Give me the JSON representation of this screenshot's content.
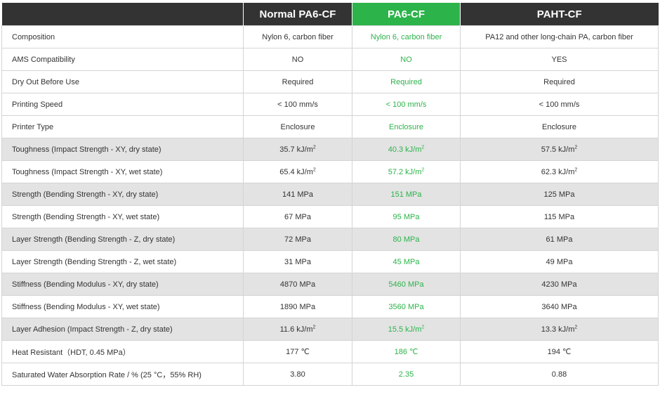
{
  "columns": [
    "",
    "Normal PA6-CF",
    "PA6-CF",
    "PAHT-CF"
  ],
  "colors": {
    "header_bg": "#333333",
    "highlight": "#2cb34a",
    "shaded_row": "#e3e3e3",
    "text": "#333333"
  },
  "rows": [
    {
      "label": "Composition",
      "shaded": false,
      "values": [
        "Nylon 6, carbon fiber",
        "Nylon 6, carbon fiber",
        "PA12 and other long-chain PA, carbon fiber"
      ]
    },
    {
      "label": "AMS Compatibility",
      "shaded": false,
      "values": [
        "NO",
        "NO",
        "YES"
      ]
    },
    {
      "label": "Dry Out Before Use",
      "shaded": false,
      "values": [
        "Required",
        "Required",
        "Required"
      ]
    },
    {
      "label": "Printing Speed",
      "shaded": false,
      "values": [
        "< 100 mm/s",
        "< 100 mm/s",
        "< 100 mm/s"
      ]
    },
    {
      "label": "Printer Type",
      "shaded": false,
      "values": [
        "Enclosure",
        "Enclosure",
        "Enclosure"
      ]
    },
    {
      "label": "Toughness (Impact Strength - XY, dry state)",
      "shaded": true,
      "values": [
        "35.7 kJ/m²",
        "40.3 kJ/m²",
        "57.5 kJ/m²"
      ]
    },
    {
      "label": "Toughness (Impact Strength - XY, wet state)",
      "shaded": false,
      "values": [
        "65.4 kJ/m²",
        "57.2 kJ/m²",
        "62.3 kJ/m²"
      ]
    },
    {
      "label": "Strength (Bending Strength - XY, dry state)",
      "shaded": true,
      "values": [
        "141 MPa",
        "151 MPa",
        "125 MPa"
      ]
    },
    {
      "label": "Strength (Bending Strength - XY, wet state)",
      "shaded": false,
      "values": [
        "67 MPa",
        "95 MPa",
        "115 MPa"
      ]
    },
    {
      "label": "Layer Strength (Bending Strength - Z, dry state)",
      "shaded": true,
      "values": [
        "72 MPa",
        "80 MPa",
        "61 MPa"
      ]
    },
    {
      "label": "Layer Strength (Bending Strength - Z, wet state)",
      "shaded": false,
      "values": [
        "31 MPa",
        "45 MPa",
        "49 MPa"
      ]
    },
    {
      "label": "Stiffness (Bending Modulus - XY, dry state)",
      "shaded": true,
      "values": [
        "4870 MPa",
        "5460 MPa",
        "4230 MPa"
      ]
    },
    {
      "label": "Stiffness (Bending Modulus - XY, wet state)",
      "shaded": false,
      "values": [
        "1890 MPa",
        "3560 MPa",
        "3640 MPa"
      ]
    },
    {
      "label": "Layer Adhesion (Impact Strength - Z, dry state)",
      "shaded": true,
      "values": [
        "11.6 kJ/m²",
        "15.5 kJ/m²",
        "13.3 kJ/m²"
      ]
    },
    {
      "label": "Heat Resistant（HDT, 0.45 MPa）",
      "shaded": false,
      "values": [
        "177 ℃",
        "186 ℃",
        "194 ℃"
      ]
    },
    {
      "label": "Saturated Water Absorption Rate / % (25 °C，55% RH)",
      "shaded": false,
      "values": [
        "3.80",
        "2.35",
        "0.88"
      ]
    }
  ]
}
